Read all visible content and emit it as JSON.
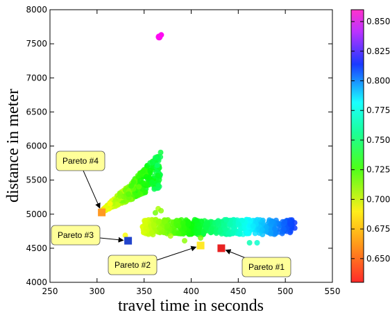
{
  "chart_data": {
    "type": "scatter",
    "title": "",
    "xlabel": "travel time in seconds",
    "ylabel": "distance in meter",
    "xlim": [
      250,
      550
    ],
    "ylim": [
      4000,
      8000
    ],
    "xticks": [
      250,
      300,
      350,
      400,
      450,
      500,
      550
    ],
    "yticks": [
      4000,
      4500,
      5000,
      5500,
      6000,
      6500,
      7000,
      7500,
      8000
    ],
    "grid": false,
    "colorbar": {
      "range": [
        0.63,
        0.86
      ],
      "ticks": [
        "0.650",
        "0.675",
        "0.700",
        "0.725",
        "0.750",
        "0.775",
        "0.800",
        "0.825",
        "0.850"
      ],
      "tick_values": [
        0.65,
        0.675,
        0.7,
        0.725,
        0.75,
        0.775,
        0.8,
        0.825,
        0.85
      ],
      "colormap": "gist_rainbow (red to magenta)"
    },
    "clusters": [
      {
        "name": "diagonal band",
        "x_range": [
          305,
          368
        ],
        "y_bottom": [
          5030,
          5400
        ],
        "y_top": [
          5050,
          5920
        ],
        "color_range": [
          0.665,
          0.74
        ]
      },
      {
        "name": "horizontal band",
        "x_range": [
          348,
          510
        ],
        "y_range": [
          4700,
          4920
        ],
        "color_range": [
          0.68,
          0.8
        ]
      },
      {
        "name": "outlier",
        "x": 366,
        "y": 7600,
        "color": 0.855
      }
    ],
    "pareto_points": [
      {
        "label": "Pareto #1",
        "x": 432,
        "y": 4500,
        "color": "#e82222"
      },
      {
        "label": "Pareto #2",
        "x": 410,
        "y": 4540,
        "color": "#ffe827"
      },
      {
        "label": "Pareto #3",
        "x": 333,
        "y": 4610,
        "color": "#2244cc"
      },
      {
        "label": "Pareto #4",
        "x": 305,
        "y": 5025,
        "color": "#ff9922"
      }
    ]
  }
}
